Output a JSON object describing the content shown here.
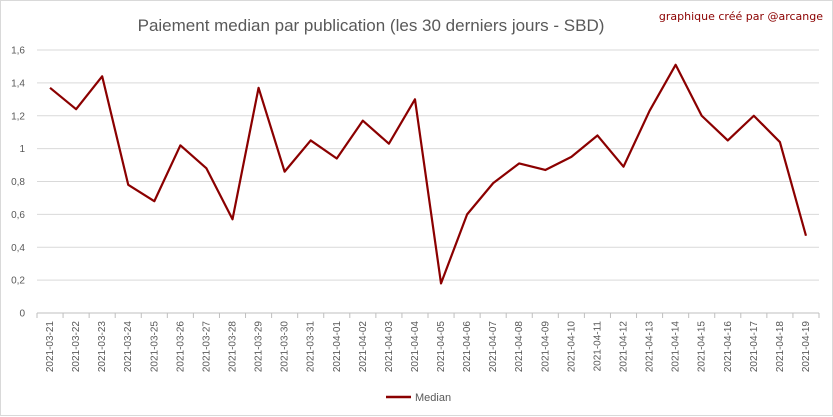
{
  "chart_data": {
    "type": "line",
    "title": "Paiement median par publication (les 30 derniers jours - SBD)",
    "credit": "graphique créé par @arcange",
    "xlabel": "",
    "ylabel": "",
    "ylim": [
      0,
      1.6
    ],
    "yticks": [
      "0",
      "0,2",
      "0,4",
      "0,6",
      "0,8",
      "1",
      "1,2",
      "1,4",
      "1,6"
    ],
    "grid": true,
    "legend_position": "bottom",
    "categories": [
      "2021-03-21",
      "2021-03-22",
      "2021-03-23",
      "2021-03-24",
      "2021-03-25",
      "2021-03-26",
      "2021-03-27",
      "2021-03-28",
      "2021-03-29",
      "2021-03-30",
      "2021-03-31",
      "2021-04-01",
      "2021-04-02",
      "2021-04-03",
      "2021-04-04",
      "2021-04-05",
      "2021-04-06",
      "2021-04-07",
      "2021-04-08",
      "2021-04-09",
      "2021-04-10",
      "2021-04-11",
      "2021-04-12",
      "2021-04-13",
      "2021-04-14",
      "2021-04-15",
      "2021-04-16",
      "2021-04-17",
      "2021-04-18",
      "2021-04-19"
    ],
    "series": [
      {
        "name": "Median",
        "color": "#8b0000",
        "values": [
          1.37,
          1.24,
          1.44,
          0.78,
          0.68,
          1.02,
          0.88,
          0.57,
          1.37,
          0.86,
          1.05,
          0.94,
          1.17,
          1.03,
          1.3,
          0.18,
          0.6,
          0.79,
          0.91,
          0.87,
          0.95,
          1.08,
          0.89,
          1.23,
          1.51,
          1.2,
          1.05,
          1.2,
          1.04,
          0.47
        ]
      }
    ]
  }
}
